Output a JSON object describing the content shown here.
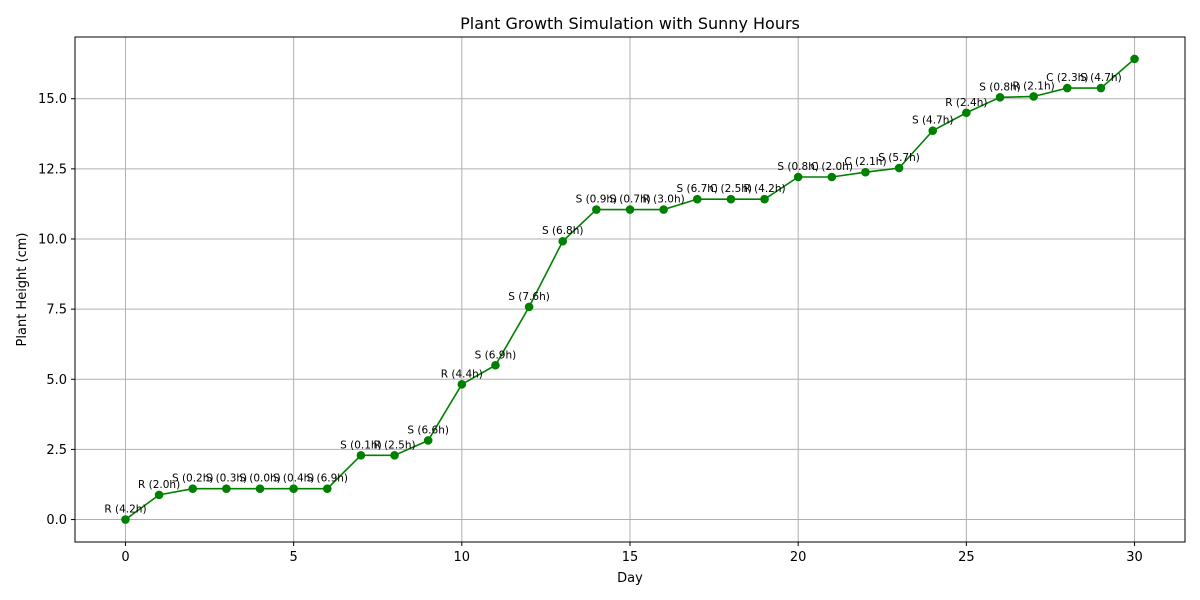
{
  "chart_data": {
    "type": "line",
    "title": "Plant Growth Simulation with Sunny Hours",
    "xlabel": "Day",
    "ylabel": "Plant Height (cm)",
    "xlim": [
      -1.5,
      31.5
    ],
    "ylim": [
      -0.8,
      17.2
    ],
    "xticks": [
      0,
      5,
      10,
      15,
      20,
      25,
      30
    ],
    "xtick_labels": [
      "0",
      "5",
      "10",
      "15",
      "20",
      "25",
      "30"
    ],
    "yticks": [
      0,
      2.5,
      5,
      7.5,
      10,
      12.5,
      15
    ],
    "ytick_labels": [
      "0.0",
      "2.5",
      "5.0",
      "7.5",
      "10.0",
      "12.5",
      "15.0"
    ],
    "grid": true,
    "series_color": "#008000",
    "x": [
      0,
      1,
      2,
      3,
      4,
      5,
      6,
      7,
      8,
      9,
      10,
      11,
      12,
      13,
      14,
      15,
      16,
      17,
      18,
      19,
      20,
      21,
      22,
      23,
      24,
      25,
      26,
      27,
      28,
      29,
      30
    ],
    "y": [
      0.0,
      0.88,
      1.1,
      1.1,
      1.1,
      1.1,
      1.1,
      2.29,
      2.29,
      2.82,
      4.82,
      5.5,
      7.58,
      9.92,
      11.05,
      11.05,
      11.05,
      11.42,
      11.42,
      11.42,
      12.21,
      12.21,
      12.38,
      12.53,
      13.86,
      14.5,
      15.05,
      15.08,
      15.38,
      15.38,
      16.42
    ],
    "annotations": [
      "R (4.2h)",
      "R (2.0h)",
      "S (0.2h)",
      "S (0.3h)",
      "S (0.0h)",
      "S (0.4h)",
      "S (6.9h)",
      "S (0.1h)",
      "R (2.5h)",
      "S (6.6h)",
      "R (4.4h)",
      "S (6.9h)",
      "S (7.6h)",
      "S (6.8h)",
      "S (0.9h)",
      "S (0.7h)",
      "R (3.0h)",
      "S (6.7h)",
      "C (2.5h)",
      "R (4.2h)",
      "S (0.8h)",
      "C (2.0h)",
      "C (2.1h)",
      "S (5.7h)",
      "S (4.7h)",
      "R (2.4h)",
      "S (0.8h)",
      "R (2.1h)",
      "C (2.3h)",
      "S (4.7h)",
      ""
    ]
  }
}
